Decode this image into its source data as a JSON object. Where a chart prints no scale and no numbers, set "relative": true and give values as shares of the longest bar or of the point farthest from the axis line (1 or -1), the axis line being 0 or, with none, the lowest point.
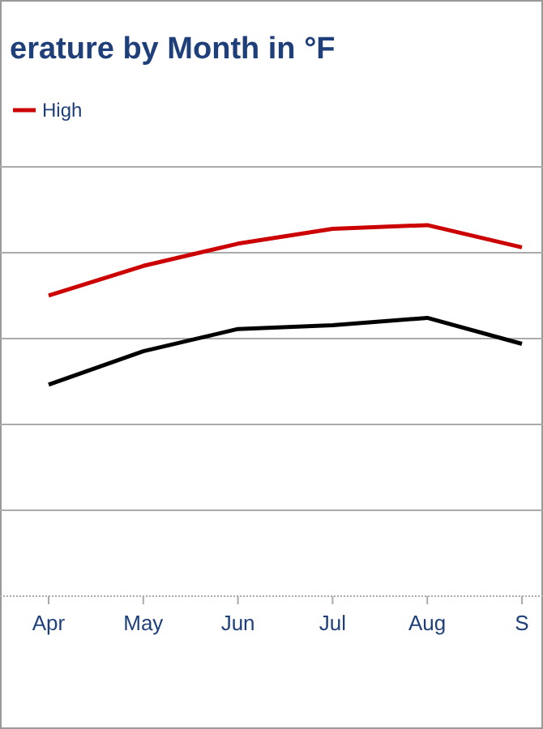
{
  "chart_data": {
    "type": "line",
    "title": "erature by Month in °F",
    "relative": true,
    "categories": [
      "Apr",
      "May",
      "Jun",
      "Jul",
      "Aug",
      "S"
    ],
    "series": [
      {
        "name": "High",
        "color": "#cc0000",
        "values": [
          0.81,
          0.89,
          0.95,
          0.99,
          1,
          0.94
        ]
      },
      {
        "color": "#000000",
        "values": [
          0.57,
          0.66,
          0.72,
          0.73,
          0.75,
          0.68
        ]
      }
    ],
    "grid": "y",
    "legend": "top left",
    "marker": "none",
    "line_style": "solid"
  }
}
